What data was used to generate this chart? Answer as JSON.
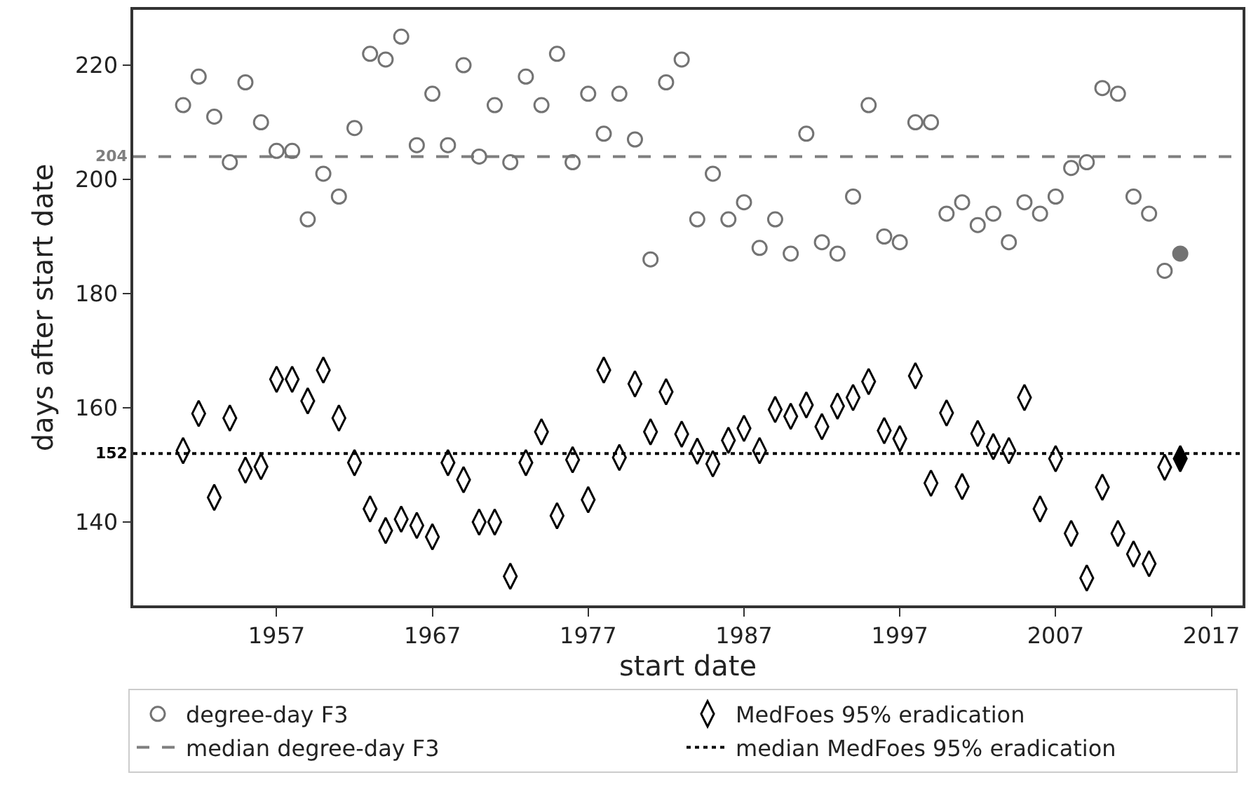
{
  "chart_data": {
    "type": "scatter",
    "xlabel": "start date",
    "ylabel": "days after start date",
    "xlim": [
      1947.8,
      2019
    ],
    "xticks": [
      1957,
      1967,
      1977,
      1987,
      1997,
      2007,
      2017
    ],
    "ylim": [
      125.4,
      229.7
    ],
    "yticks": [
      140,
      160,
      180,
      200,
      220
    ],
    "grid": false,
    "legend": "bottom",
    "series": [
      {
        "name": "degree-day F3",
        "color": "#737373",
        "marker": "circle",
        "x": [
          1951,
          1952,
          1953,
          1954,
          1955,
          1956,
          1957,
          1958,
          1959,
          1960,
          1961,
          1962,
          1963,
          1964,
          1965,
          1966,
          1967,
          1968,
          1969,
          1970,
          1971,
          1972,
          1973,
          1974,
          1975,
          1976,
          1977,
          1978,
          1979,
          1980,
          1981,
          1982,
          1983,
          1984,
          1985,
          1986,
          1987,
          1988,
          1989,
          1990,
          1991,
          1992,
          1993,
          1994,
          1995,
          1996,
          1997,
          1998,
          1999,
          2000,
          2001,
          2002,
          2003,
          2004,
          2005,
          2006,
          2007,
          2008,
          2009,
          2010,
          2011,
          2012,
          2013,
          2014
        ],
        "values": [
          213,
          218,
          211,
          203,
          217,
          210,
          205,
          205,
          193,
          201,
          197,
          209,
          222,
          221,
          225,
          206,
          215,
          206,
          220,
          204,
          213,
          203,
          218,
          213,
          222,
          203,
          215,
          208,
          215,
          207,
          186,
          217,
          221,
          193,
          201,
          193,
          196,
          188,
          193,
          187,
          208,
          189,
          187,
          197,
          213,
          190,
          189,
          210,
          210,
          194,
          196,
          192,
          194,
          189,
          196,
          194,
          197,
          202,
          203,
          216,
          215,
          197,
          194,
          184
        ]
      },
      {
        "name": "MedFoes 95% eradication",
        "color": "#000000",
        "marker": "diamond",
        "x": [
          1951,
          1952,
          1953,
          1954,
          1955,
          1956,
          1957,
          1958,
          1959,
          1960,
          1961,
          1962,
          1963,
          1964,
          1965,
          1966,
          1967,
          1968,
          1969,
          1970,
          1971,
          1972,
          1973,
          1974,
          1975,
          1976,
          1977,
          1978,
          1979,
          1980,
          1981,
          1982,
          1983,
          1984,
          1985,
          1986,
          1987,
          1988,
          1989,
          1990,
          1991,
          1992,
          1993,
          1994,
          1995,
          1996,
          1997,
          1998,
          1999,
          2000,
          2001,
          2002,
          2003,
          2004,
          2005,
          2006,
          2007,
          2008,
          2009,
          2010,
          2011,
          2012,
          2013,
          2014
        ],
        "values": [
          152.5,
          159,
          144.3,
          158.2,
          149.1,
          149.7,
          165,
          165,
          161.2,
          166.6,
          158.2,
          150.4,
          142.3,
          138.5,
          140.5,
          139.4,
          137.4,
          150.4,
          147.4,
          140,
          140,
          130.5,
          150.4,
          155.8,
          141.1,
          150.9,
          143.9,
          166.6,
          151.3,
          164.2,
          155.8,
          162.8,
          155.4,
          152.4,
          150.2,
          154.3,
          156.4,
          152.5,
          159.7,
          158.5,
          160.5,
          156.7,
          160.3,
          161.8,
          164.6,
          156,
          154.6,
          165.6,
          146.8,
          159.1,
          146.2,
          155.5,
          153.2,
          152.5,
          161.8,
          142.3,
          151.1,
          138,
          130.2,
          146.1,
          138,
          134.4,
          132.7,
          149.6
        ]
      },
      {
        "color": "#737373",
        "marker": "circle",
        "x": [
          2015
        ],
        "values": [
          187
        ]
      },
      {
        "color": "#000000",
        "marker": "diamond",
        "x": [
          2015
        ],
        "values": [
          151.1
        ]
      }
    ],
    "ref_lines": [
      {
        "axis": "y",
        "value": 204,
        "label": "median degree-day F3",
        "color": "#7f7f7f",
        "line_style": "dashed"
      },
      {
        "axis": "y",
        "value": 152,
        "label": "median MedFoes 95% eradication",
        "color": "#000000",
        "line_style": "dotted"
      }
    ],
    "annotations": [
      "204",
      "152"
    ]
  }
}
